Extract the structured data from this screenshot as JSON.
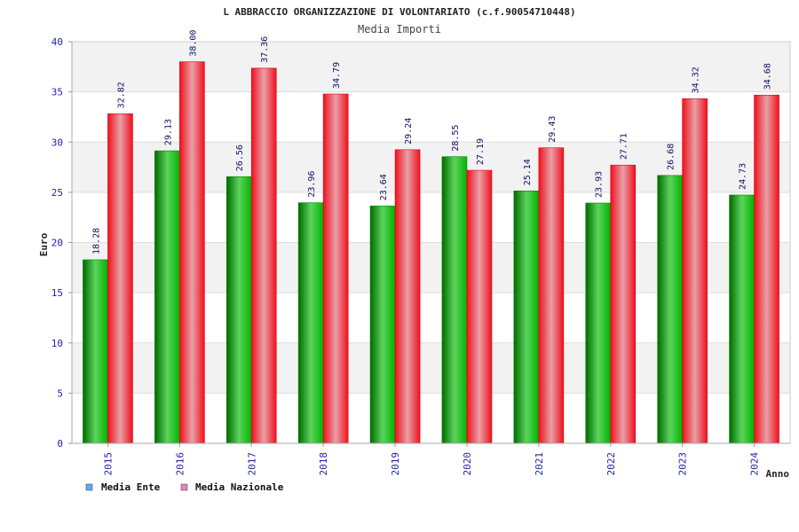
{
  "chart_data": {
    "type": "bar",
    "title": "L ABBRACCIO ORGANIZZAZIONE DI VOLONTARIATO (c.f.90054710448)",
    "subtitle": "Media Importi",
    "xlabel": "Anno",
    "ylabel": "Euro",
    "ylim": [
      0,
      40
    ],
    "yticks": [
      0,
      5,
      10,
      15,
      20,
      25,
      30,
      35,
      40
    ],
    "ytick_labels": [
      "0",
      "5",
      "10",
      "15",
      "20",
      "25",
      "30",
      "35",
      "40"
    ],
    "grid": true,
    "legend_position": "bottom-left",
    "categories": [
      "2015",
      "2016",
      "2017",
      "2018",
      "2019",
      "2020",
      "2021",
      "2022",
      "2023",
      "2024"
    ],
    "series": [
      {
        "name": "Media Ente",
        "values": [
          18.28,
          29.13,
          26.56,
          23.96,
          23.64,
          28.55,
          25.14,
          23.93,
          26.68,
          24.73
        ],
        "labels": [
          "18.28",
          "29.13",
          "26.56",
          "23.96",
          "23.64",
          "28.55",
          "25.14",
          "23.93",
          "26.68",
          "24.73"
        ],
        "color": "#00aa00",
        "legend_color": "#66aaee"
      },
      {
        "name": "Media Nazionale",
        "values": [
          32.82,
          38.0,
          37.36,
          34.79,
          29.24,
          27.19,
          29.43,
          27.71,
          34.32,
          34.68
        ],
        "labels": [
          "32.82",
          "38.00",
          "37.36",
          "34.79",
          "29.24",
          "27.19",
          "29.43",
          "27.71",
          "34.32",
          "34.68"
        ],
        "color": "#ee1122",
        "legend_color": "#dd88bb"
      }
    ]
  }
}
